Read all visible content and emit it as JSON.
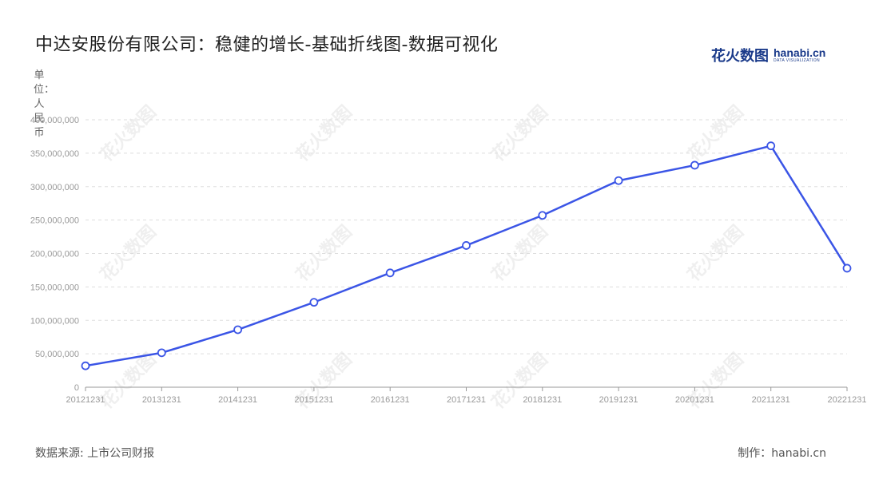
{
  "title": "中达安股份有限公司：稳健的增长-基础折线图-数据可视化",
  "logo": {
    "cn": "花火数图",
    "en": "hanabi.cn",
    "sub": "DATA VISUALIZATION"
  },
  "unit_label": "单位：人民币",
  "source": "数据来源: 上市公司财报",
  "maker": "制作：hanabi.cn",
  "watermark_text": "花火数图",
  "colors": {
    "line": "#3b55e6",
    "grid": "#dddddd",
    "axis": "#999999"
  },
  "chart_data": {
    "type": "line",
    "title": "中达安股份有限公司：稳健的增长-基础折线图-数据可视化",
    "xlabel": "",
    "ylabel": "单位：人民币",
    "categories": [
      "20121231",
      "20131231",
      "20141231",
      "20151231",
      "20161231",
      "20171231",
      "20181231",
      "20191231",
      "20201231",
      "20211231",
      "20221231"
    ],
    "series": [
      {
        "values": [
          32000000,
          51500000,
          86000000,
          127000000,
          171000000,
          212000000,
          257000000,
          309000000,
          332000000,
          361000000,
          178000000
        ]
      }
    ],
    "ylim": [
      0,
      400000000
    ],
    "yticks": [
      0,
      50000000,
      100000000,
      150000000,
      200000000,
      250000000,
      300000000,
      350000000,
      400000000
    ],
    "ytick_labels": [
      "0",
      "50,000,000",
      "100,000,000",
      "150,000,000",
      "200,000,000",
      "250,000,000",
      "300,000,000",
      "350,000,000",
      "400,000,000"
    ],
    "grid": true,
    "legend": "none"
  }
}
